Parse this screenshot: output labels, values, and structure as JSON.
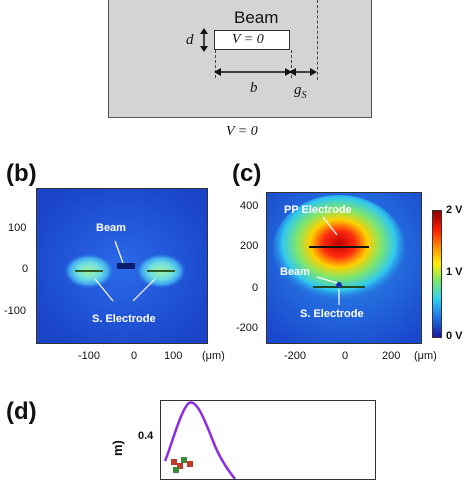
{
  "panel_a": {
    "beam_label": "Beam",
    "v_inside": "V = 0",
    "v_outside": "V = 0",
    "d_label": "d",
    "b_label": "b",
    "gs_main": "g",
    "gs_sub": "S"
  },
  "panel_b": {
    "label": "(b)",
    "beam_label": "Beam",
    "electrode_label": "S. Electrode",
    "unit": "(μm)",
    "y_ticks": [
      "100",
      "0",
      "-100"
    ],
    "x_ticks": [
      "-100",
      "0",
      "100"
    ]
  },
  "panel_c": {
    "label": "(c)",
    "pp_label": "PP Electrode",
    "beam_label": "Beam",
    "electrode_label": "S. Electrode",
    "unit": "(μm)",
    "y_ticks": [
      "400",
      "200",
      "0",
      "-200"
    ],
    "x_ticks": [
      "-200",
      "0",
      "200"
    ],
    "colorbar_ticks": [
      "2 V",
      "1 V",
      "0 V"
    ]
  },
  "panel_d": {
    "label": "(d)",
    "y_tick": "0.4",
    "ylabel_fragment": "m)",
    "curve_color": "#8a2be2"
  }
}
